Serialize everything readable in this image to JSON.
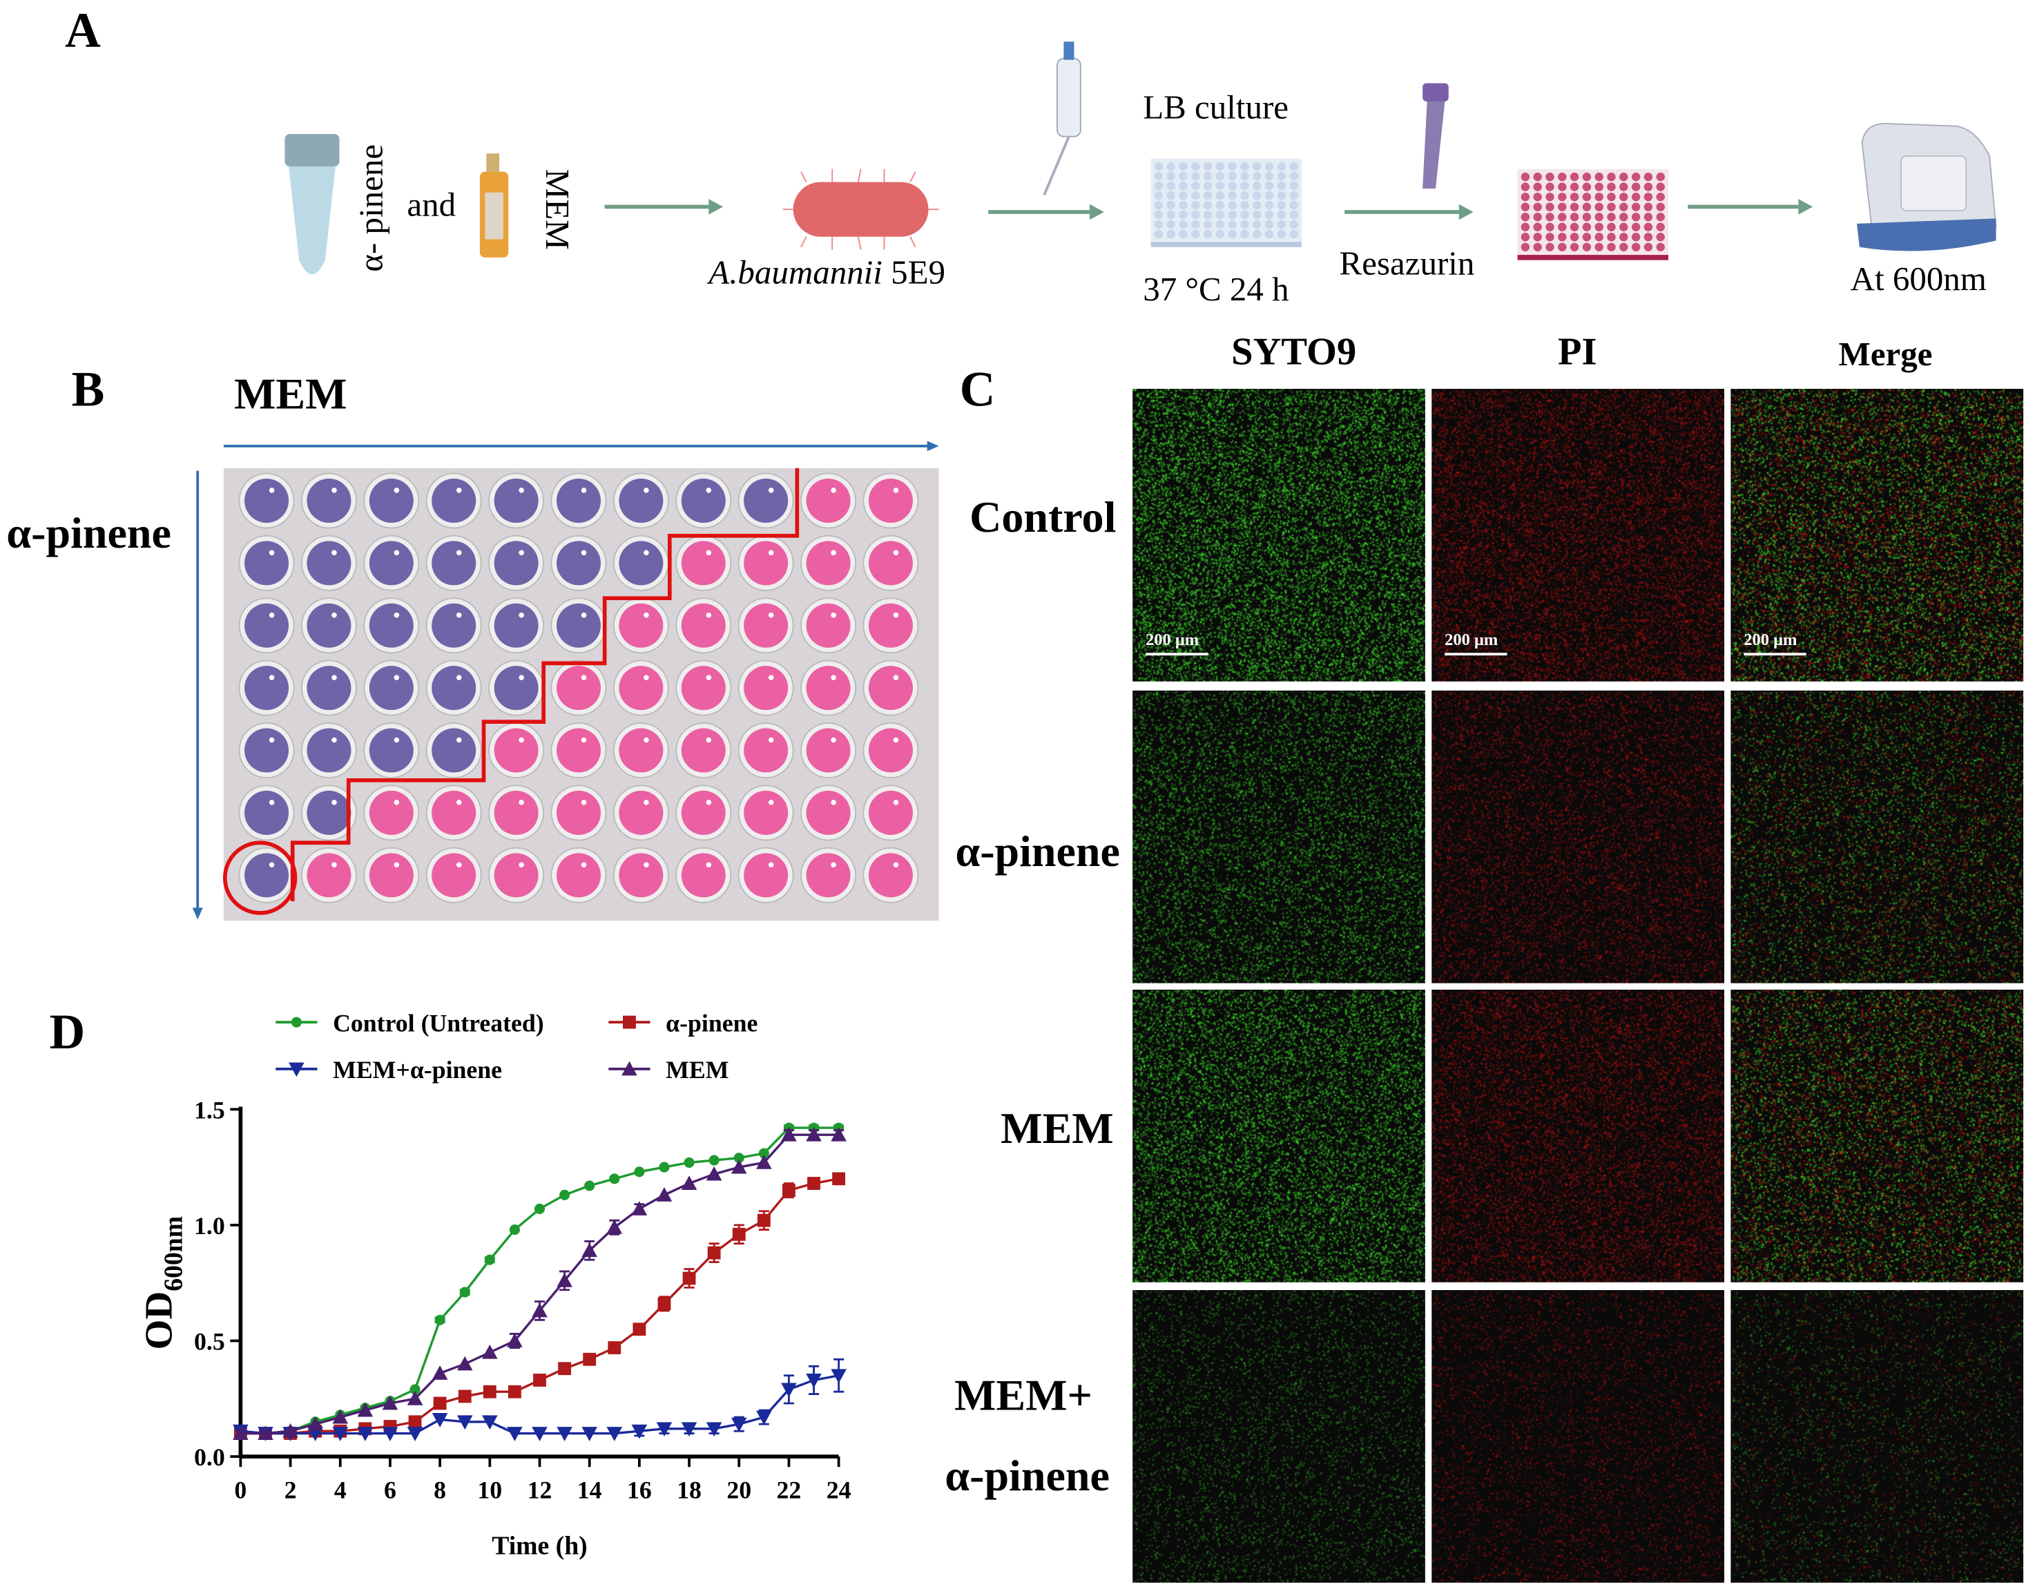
{
  "panel_labels": {
    "a": "A",
    "b": "B",
    "c": "C",
    "d": "D"
  },
  "panel_a": {
    "reagent1": "α- pinene",
    "connector": "and",
    "reagent2": "MEM",
    "bacteria": "A.baumannii",
    "strain": "5E9",
    "culture": "LB culture",
    "incubation": "37 °C 24 h",
    "dye": "Resazurin",
    "readout": "At 600nm",
    "colors": {
      "arrow": "#6f9e86",
      "tube": "#bcd9e6",
      "bacterium": "#e06868",
      "plate_blue": "#c9d7ea",
      "plate_pink": "#c9507a",
      "dropper": "#7b5ea8",
      "reader": "#4a6fb0"
    }
  },
  "panel_b": {
    "x_axis_label": "MEM",
    "y_axis_label": "α-pinene",
    "purple_wells_per_row": [
      9,
      7,
      6,
      5,
      4,
      2,
      1
    ],
    "columns": 11,
    "colors": {
      "purple": "#5b4a9a",
      "pink": "#e9509a",
      "line": "#e01010",
      "arrow": "#2f6fb0"
    }
  },
  "panel_c": {
    "columns": [
      "SYTO9",
      "PI",
      "Merge"
    ],
    "rows": [
      {
        "label": "Control",
        "intensity": 1.0
      },
      {
        "label": "α-pinene",
        "intensity": 0.6
      },
      {
        "label": "MEM",
        "intensity": 0.85
      },
      {
        "label_line1": "MEM+",
        "label_line2": "α-pinene",
        "intensity": 0.2
      }
    ],
    "scale_bar": "200 μm"
  },
  "chart_data": {
    "type": "line",
    "title": "",
    "xlabel": "Time (h)",
    "ylabel": "OD",
    "ylabel_sub": "600nm",
    "xlim": [
      0,
      24
    ],
    "ylim": [
      0,
      1.5
    ],
    "xticks": [
      0,
      2,
      4,
      6,
      8,
      10,
      12,
      14,
      16,
      18,
      20,
      22,
      24
    ],
    "yticks": [
      "0.0",
      "0.5",
      "1.0",
      "1.5"
    ],
    "x": [
      0,
      1,
      2,
      3,
      4,
      5,
      6,
      7,
      8,
      9,
      10,
      11,
      12,
      13,
      14,
      15,
      16,
      17,
      18,
      19,
      20,
      21,
      22,
      23,
      24
    ],
    "legend": "top",
    "series": [
      {
        "name": "Control (Untreated)",
        "color": "#1e9a2e",
        "marker": "circle",
        "values": [
          0.1,
          0.1,
          0.11,
          0.15,
          0.18,
          0.21,
          0.24,
          0.29,
          0.59,
          0.71,
          0.85,
          0.98,
          1.07,
          1.13,
          1.17,
          1.2,
          1.23,
          1.25,
          1.27,
          1.28,
          1.29,
          1.31,
          1.42,
          1.42,
          1.42
        ],
        "errors": [
          0,
          0,
          0,
          0,
          0,
          0,
          0,
          0,
          0.01,
          0.01,
          0.01,
          0,
          0,
          0,
          0,
          0,
          0,
          0,
          0,
          0,
          0,
          0,
          0.01,
          0.01,
          0.01
        ]
      },
      {
        "name": "α-pinene",
        "color": "#b01a1a",
        "marker": "square",
        "values": [
          0.1,
          0.1,
          0.1,
          0.11,
          0.11,
          0.12,
          0.13,
          0.15,
          0.23,
          0.26,
          0.28,
          0.28,
          0.33,
          0.38,
          0.42,
          0.47,
          0.55,
          0.66,
          0.77,
          0.88,
          0.96,
          1.02,
          1.15,
          1.18,
          1.2
        ],
        "errors": [
          0,
          0,
          0,
          0,
          0,
          0,
          0,
          0.01,
          0.01,
          0.01,
          0.01,
          0.01,
          0.01,
          0.01,
          0.01,
          0.01,
          0.02,
          0.03,
          0.04,
          0.04,
          0.04,
          0.04,
          0.03,
          0.02,
          0.02
        ]
      },
      {
        "name": "MEM+α-pinene",
        "color": "#1a2a9a",
        "marker": "triangle-down",
        "values": [
          0.11,
          0.1,
          0.1,
          0.1,
          0.1,
          0.1,
          0.1,
          0.1,
          0.16,
          0.15,
          0.15,
          0.1,
          0.1,
          0.1,
          0.1,
          0.1,
          0.11,
          0.12,
          0.12,
          0.12,
          0.14,
          0.17,
          0.29,
          0.33,
          0.35
        ],
        "errors": [
          0,
          0,
          0,
          0,
          0,
          0,
          0,
          0,
          0,
          0,
          0,
          0,
          0,
          0,
          0,
          0,
          0.02,
          0.02,
          0.02,
          0.02,
          0.03,
          0.03,
          0.06,
          0.06,
          0.07
        ]
      },
      {
        "name": "MEM",
        "color": "#4a1f6e",
        "marker": "triangle-up",
        "values": [
          0.1,
          0.1,
          0.11,
          0.14,
          0.17,
          0.2,
          0.23,
          0.25,
          0.36,
          0.4,
          0.45,
          0.5,
          0.63,
          0.76,
          0.89,
          0.99,
          1.07,
          1.13,
          1.18,
          1.22,
          1.25,
          1.27,
          1.39,
          1.39,
          1.39
        ],
        "errors": [
          0,
          0,
          0,
          0,
          0,
          0,
          0,
          0,
          0,
          0,
          0,
          0.03,
          0.04,
          0.04,
          0.04,
          0.03,
          0.02,
          0,
          0,
          0,
          0,
          0,
          0.02,
          0.02,
          0.02
        ]
      }
    ]
  }
}
